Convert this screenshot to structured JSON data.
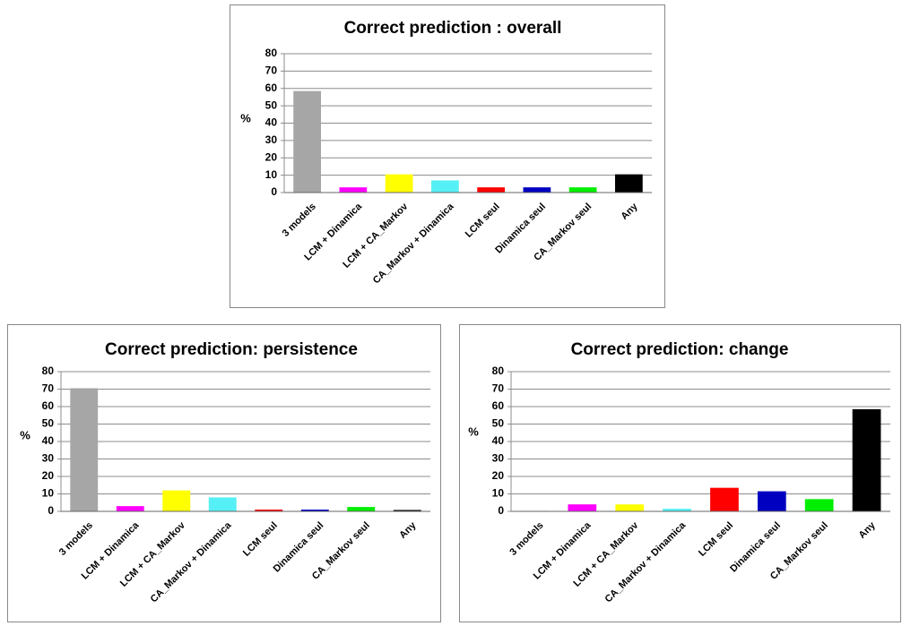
{
  "chart_data": [
    {
      "type": "bar",
      "title": "Correct prediction : overall",
      "ylabel": "%",
      "categories": [
        "3 models",
        "LCM + Dinamica",
        "LCM + CA_Markov",
        "CA_Markov + Dinamica",
        "LCM seul",
        "Dinamica seul",
        "CA_Markov seul",
        "Any"
      ],
      "values": [
        58.5,
        3,
        10.5,
        7,
        3,
        3,
        3,
        10.5
      ],
      "colors": [
        "#a6a6a6",
        "#ff00ff",
        "#ffff00",
        "#55f0f5",
        "#ff0000",
        "#0000c0",
        "#00ee00",
        "#000000"
      ],
      "ylim": [
        0,
        80
      ],
      "yticks": [
        0,
        10,
        20,
        30,
        40,
        50,
        60,
        70,
        80
      ],
      "grid": true
    },
    {
      "type": "bar",
      "title": "Correct prediction: persistence",
      "ylabel": "%",
      "categories": [
        "3 models",
        "LCM + Dinamica",
        "LCM + CA_Markov",
        "CA_Markov + Dinamica",
        "LCM seul",
        "Dinamica seul",
        "CA_Markov seul",
        "Any"
      ],
      "values": [
        70.5,
        3,
        12,
        8,
        1,
        1,
        2.5,
        0.8
      ],
      "colors": [
        "#a6a6a6",
        "#ff00ff",
        "#ffff00",
        "#55f0f5",
        "#ff0000",
        "#0000c0",
        "#00ee00",
        "#000000"
      ],
      "ylim": [
        0,
        80
      ],
      "yticks": [
        0,
        10,
        20,
        30,
        40,
        50,
        60,
        70,
        80
      ],
      "grid": true
    },
    {
      "type": "bar",
      "title": "Correct prediction: change",
      "ylabel": "%",
      "categories": [
        "3 models",
        "LCM + Dinamica",
        "LCM + CA_Markov",
        "CA_Markov + Dinamica",
        "LCM seul",
        "Dinamica seul",
        "CA_Markov seul",
        "Any"
      ],
      "values": [
        0.3,
        4,
        4,
        1.5,
        13.5,
        11.5,
        7,
        58.5
      ],
      "colors": [
        "#a6a6a6",
        "#ff00ff",
        "#ffff00",
        "#55f0f5",
        "#ff0000",
        "#0000c0",
        "#00ee00",
        "#000000"
      ],
      "ylim": [
        0,
        80
      ],
      "yticks": [
        0,
        10,
        20,
        30,
        40,
        50,
        60,
        70,
        80
      ],
      "grid": true
    }
  ]
}
